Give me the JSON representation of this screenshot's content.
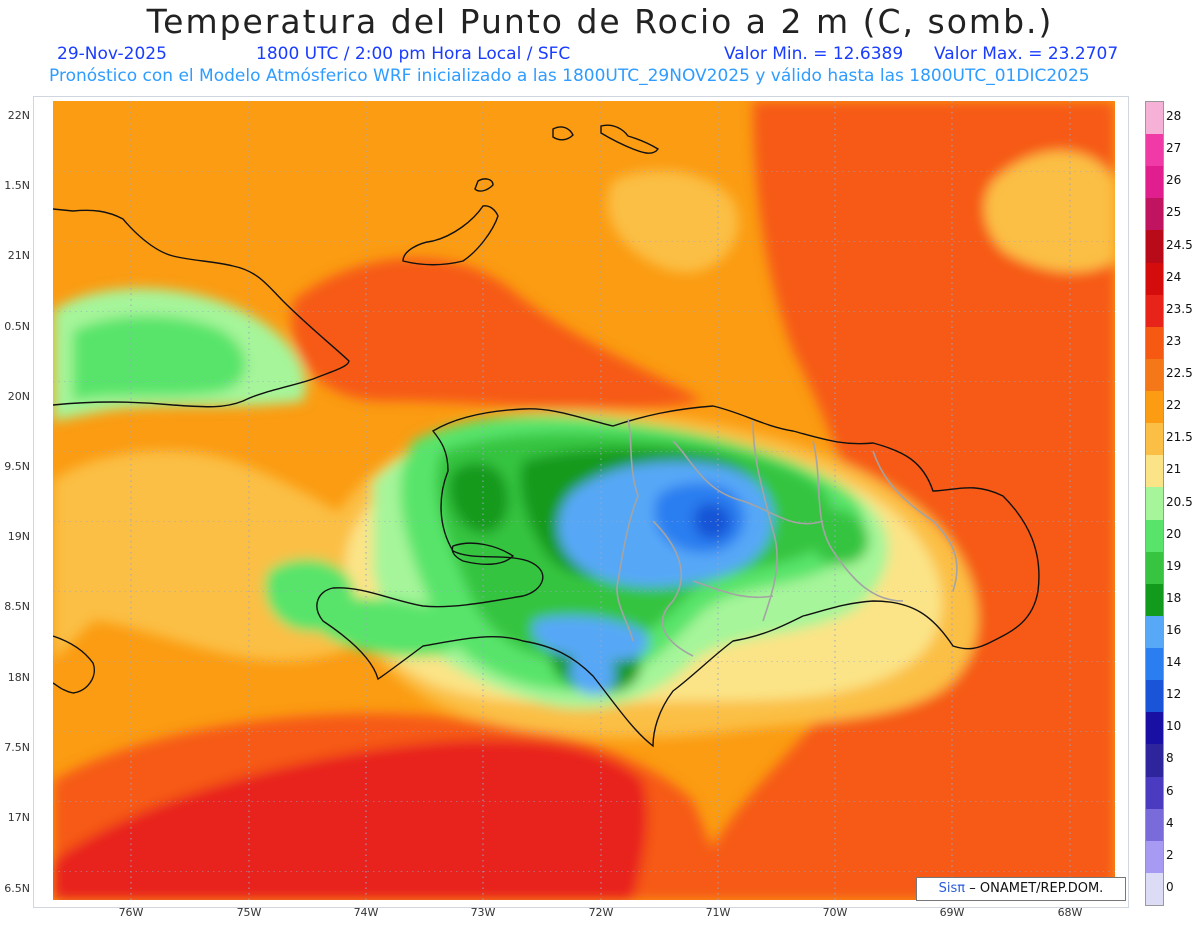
{
  "header": {
    "title": "Temperatura del Punto de Rocio a 2 m (C, somb.)",
    "date": "29-Nov-2025",
    "time": "1800 UTC / 2:00 pm Hora Local / SFC",
    "min_label": "Valor Min. = 12.6389",
    "max_label": "Valor Max. = 23.2707",
    "model_line": "Pronóstico con el Modelo Atmósferico WRF inicializado a las 1800UTC_29NOV2025 y válido hasta las  1800UTC_01DIC2025"
  },
  "lat_labels": [
    "22N",
    "1.5N",
    "21N",
    "0.5N",
    "20N",
    "9.5N",
    "19N",
    "8.5N",
    "18N",
    "7.5N",
    "17N",
    "6.5N"
  ],
  "lon_labels": [
    "76W",
    "75W",
    "74W",
    "73W",
    "72W",
    "71W",
    "70W",
    "69W",
    "68W"
  ],
  "colorbar": {
    "labels": [
      "28",
      "27",
      "26",
      "25",
      "24.5",
      "24",
      "23.5",
      "23",
      "22.5",
      "22",
      "21.5",
      "21",
      "20.5",
      "20",
      "19",
      "18",
      "16",
      "14",
      "12",
      "10",
      "8",
      "6",
      "4",
      "2",
      "0"
    ],
    "colors": [
      "#f5b1d6",
      "#f03aa6",
      "#e01e8e",
      "#c01460",
      "#b80a18",
      "#d40c0c",
      "#e8231a",
      "#f65a12",
      "#f57818",
      "#fb9c12",
      "#fbbf45",
      "#fbe487",
      "#a6f59a",
      "#58e46a",
      "#36c441",
      "#129a1d",
      "#57a8f7",
      "#2a7ef0",
      "#1955d6",
      "#1a0fa3",
      "#2e259d",
      "#4a3bc0",
      "#7a6bdb",
      "#a79af2",
      "#dcdcf6"
    ]
  },
  "credit": {
    "brand": "Sisπ",
    "text": "– ONAMET/REP.DOM."
  }
}
